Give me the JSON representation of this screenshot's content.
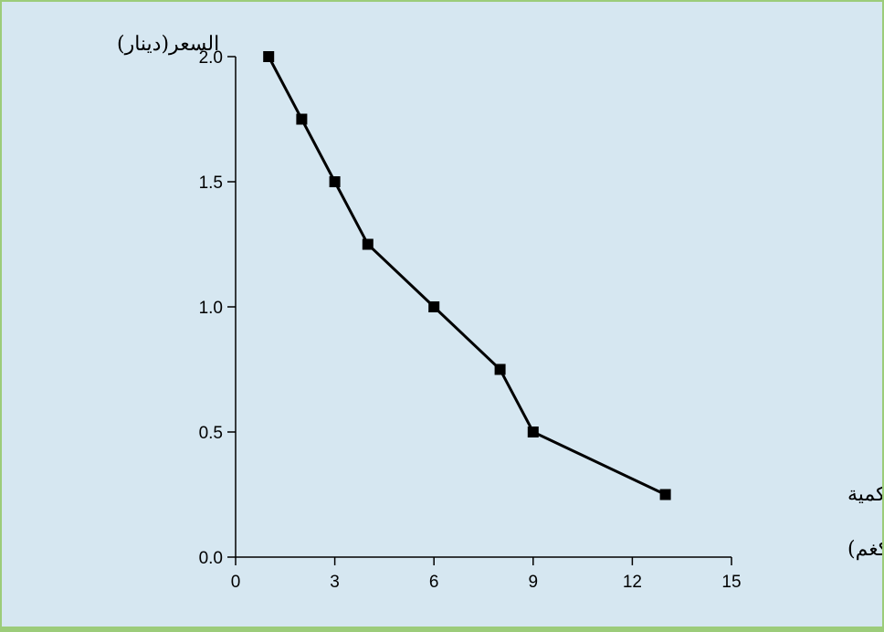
{
  "chart_data": {
    "type": "line",
    "ylabel": "السعر(دينار)",
    "xlabel_line1": "الكمية",
    "xlabel_line2": "(كغم)",
    "xlim": [
      0,
      15
    ],
    "ylim": [
      0,
      2.0
    ],
    "x_ticks": [
      "0",
      "3",
      "6",
      "9",
      "12",
      "15"
    ],
    "y_ticks": [
      "0.0",
      "0.5",
      "1.0",
      "1.5",
      "2.0"
    ],
    "points": [
      {
        "x": 1,
        "y": 2.0
      },
      {
        "x": 2,
        "y": 1.75
      },
      {
        "x": 3,
        "y": 1.5
      },
      {
        "x": 4,
        "y": 1.25
      },
      {
        "x": 6,
        "y": 1.0
      },
      {
        "x": 8,
        "y": 0.75
      },
      {
        "x": 9,
        "y": 0.5
      },
      {
        "x": 13,
        "y": 0.25
      }
    ],
    "marker": "square",
    "line_color": "#000000",
    "background_color": "#d6e7f1",
    "frame_color": "#9ccc7a"
  }
}
